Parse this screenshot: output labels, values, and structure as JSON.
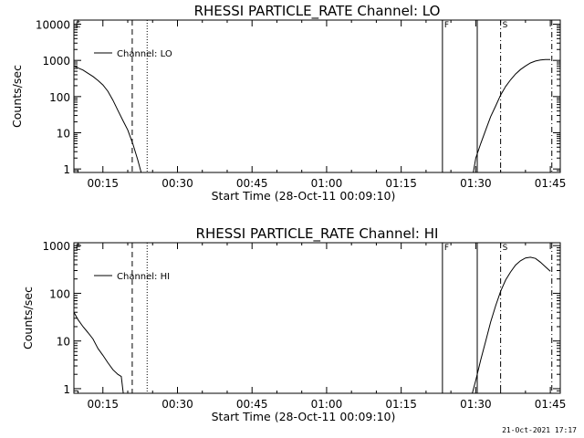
{
  "timestamp": "21-Oct-2021 17:17",
  "chart_data": [
    {
      "type": "line",
      "title": "RHESSI PARTICLE_RATE Channel: LO",
      "xlabel": "Start Time (28-Oct-11 00:09:10)",
      "ylabel": "Counts/sec",
      "yscale": "log",
      "xlim_minutes": [
        9.17,
        107.0
      ],
      "ylim": [
        0.8,
        13000
      ],
      "x_ticks": [
        {
          "label": "00:15",
          "minutes": 15
        },
        {
          "label": "00:30",
          "minutes": 30
        },
        {
          "label": "00:45",
          "minutes": 45
        },
        {
          "label": "01:00",
          "minutes": 60
        },
        {
          "label": "01:15",
          "minutes": 75
        },
        {
          "label": "01:30",
          "minutes": 90
        },
        {
          "label": "01:45",
          "minutes": 105
        }
      ],
      "y_ticks": [
        {
          "label": "1",
          "value": 1
        },
        {
          "label": "10",
          "value": 10
        },
        {
          "label": "100",
          "value": 100
        },
        {
          "label": "1000",
          "value": 1000
        },
        {
          "label": "10000",
          "value": 10000
        }
      ],
      "legend": "Channel: LO",
      "series": [
        {
          "name": "Channel: LO",
          "segments": [
            [
              [
                9.17,
                700
              ],
              [
                10,
                620
              ],
              [
                11,
                540
              ],
              [
                12,
                440
              ],
              [
                13,
                360
              ],
              [
                14,
                280
              ],
              [
                15,
                210
              ],
              [
                16,
                140
              ],
              [
                17,
                80
              ],
              [
                18,
                42
              ],
              [
                19,
                22
              ],
              [
                20,
                12
              ],
              [
                21,
                5
              ],
              [
                22,
                1.8
              ],
              [
                22.7,
                0.8
              ]
            ],
            [
              [
                89.5,
                0.8
              ],
              [
                90,
                2
              ],
              [
                91,
                5
              ],
              [
                92,
                12
              ],
              [
                93,
                28
              ],
              [
                94,
                55
              ],
              [
                95,
                110
              ],
              [
                96,
                190
              ],
              [
                97,
                290
              ],
              [
                98,
                420
              ],
              [
                99,
                560
              ],
              [
                100,
                700
              ],
              [
                101,
                850
              ],
              [
                102,
                960
              ],
              [
                103,
                1020
              ],
              [
                104,
                1050
              ],
              [
                105,
                1050
              ]
            ]
          ]
        }
      ],
      "markers": [
        {
          "minutes": 20.9,
          "style": "dashed"
        },
        {
          "minutes": 23.9,
          "style": "dotted"
        },
        {
          "minutes": 83.3,
          "style": "solid",
          "label": "F"
        },
        {
          "minutes": 90.3,
          "style": "solid"
        },
        {
          "minutes": 95.0,
          "style": "dashdot",
          "label": "S"
        },
        {
          "minutes": 105.3,
          "style": "dashdot"
        }
      ],
      "flags": [
        {
          "label": "E",
          "minutes": 9.3
        }
      ]
    },
    {
      "type": "line",
      "title": "RHESSI PARTICLE_RATE Channel: HI",
      "xlabel": "Start Time (28-Oct-11 00:09:10)",
      "ylabel": "Counts/sec",
      "yscale": "log",
      "xlim_minutes": [
        9.17,
        107.0
      ],
      "ylim": [
        0.8,
        1150
      ],
      "x_ticks": [
        {
          "label": "00:15",
          "minutes": 15
        },
        {
          "label": "00:30",
          "minutes": 30
        },
        {
          "label": "00:45",
          "minutes": 45
        },
        {
          "label": "01:00",
          "minutes": 60
        },
        {
          "label": "01:15",
          "minutes": 75
        },
        {
          "label": "01:30",
          "minutes": 90
        },
        {
          "label": "01:45",
          "minutes": 105
        }
      ],
      "y_ticks": [
        {
          "label": "1",
          "value": 1
        },
        {
          "label": "10",
          "value": 10
        },
        {
          "label": "100",
          "value": 100
        },
        {
          "label": "1000",
          "value": 1000
        }
      ],
      "legend": "Channel: HI",
      "series": [
        {
          "name": "Channel: HI",
          "segments": [
            [
              [
                9.17,
                40
              ],
              [
                10,
                28
              ],
              [
                11,
                20
              ],
              [
                12,
                15
              ],
              [
                13,
                11
              ],
              [
                14,
                7
              ],
              [
                15,
                5
              ],
              [
                16,
                3.5
              ],
              [
                17,
                2.5
              ],
              [
                18,
                2
              ],
              [
                18.7,
                1.8
              ],
              [
                19.1,
                0.8
              ]
            ],
            [
              [
                89.3,
                0.8
              ],
              [
                90,
                1.5
              ],
              [
                91,
                4
              ],
              [
                92,
                10
              ],
              [
                93,
                25
              ],
              [
                94,
                55
              ],
              [
                95,
                110
              ],
              [
                96,
                190
              ],
              [
                97,
                280
              ],
              [
                98,
                390
              ],
              [
                99,
                480
              ],
              [
                100,
                550
              ],
              [
                101,
                570
              ],
              [
                102,
                540
              ],
              [
                103,
                450
              ],
              [
                104,
                360
              ],
              [
                105,
                290
              ]
            ]
          ]
        }
      ],
      "markers": [
        {
          "minutes": 20.9,
          "style": "dashed"
        },
        {
          "minutes": 23.9,
          "style": "dotted"
        },
        {
          "minutes": 83.3,
          "style": "solid",
          "label": "F"
        },
        {
          "minutes": 90.3,
          "style": "solid"
        },
        {
          "minutes": 95.0,
          "style": "dashdot",
          "label": "S"
        },
        {
          "minutes": 105.3,
          "style": "dashdot"
        }
      ],
      "flags": [
        {
          "label": "E",
          "minutes": 9.3
        }
      ]
    }
  ]
}
